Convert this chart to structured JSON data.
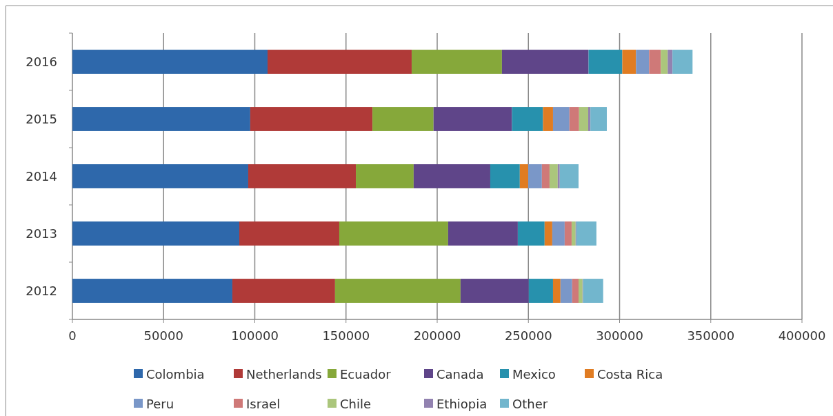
{
  "chart_data": {
    "type": "bar",
    "orientation": "horizontal",
    "stacked": true,
    "categories": [
      "2016",
      "2015",
      "2014",
      "2013",
      "2012"
    ],
    "series": [
      {
        "name": "Colombia",
        "color": "#2e68ab",
        "values": [
          107000,
          97500,
          96400,
          91500,
          87700
        ]
      },
      {
        "name": "Netherlands",
        "color": "#b03a38",
        "values": [
          79000,
          67000,
          59000,
          54800,
          56300
        ]
      },
      {
        "name": "Ecuador",
        "color": "#86a83a",
        "values": [
          49500,
          33500,
          31700,
          59700,
          68800
        ]
      },
      {
        "name": "Canada",
        "color": "#5f4589",
        "values": [
          47500,
          43000,
          42000,
          38200,
          37400
        ]
      },
      {
        "name": "Mexico",
        "color": "#2791ad",
        "values": [
          18500,
          17000,
          16200,
          14700,
          13300
        ]
      },
      {
        "name": "Costa Rica",
        "color": "#e07c22",
        "values": [
          7500,
          5500,
          4600,
          4200,
          4100
        ]
      },
      {
        "name": "Peru",
        "color": "#7a97c8",
        "values": [
          7200,
          9000,
          7500,
          6800,
          6400
        ]
      },
      {
        "name": "Israel",
        "color": "#cf7978",
        "values": [
          6400,
          5300,
          4200,
          3800,
          3500
        ]
      },
      {
        "name": "Chile",
        "color": "#abc67c",
        "values": [
          3800,
          5000,
          4500,
          2200,
          2200
        ]
      },
      {
        "name": "Ethiopia",
        "color": "#9282b0",
        "values": [
          2600,
          1200,
          1100,
          400,
          300
        ]
      },
      {
        "name": "Other",
        "color": "#72b6cd",
        "values": [
          11000,
          9000,
          10300,
          11000,
          11000
        ]
      }
    ],
    "xlim": [
      0,
      400000
    ],
    "xticks": [
      0,
      50000,
      100000,
      150000,
      200000,
      250000,
      300000,
      350000,
      400000
    ],
    "grid": "x",
    "legend": "bottom"
  }
}
